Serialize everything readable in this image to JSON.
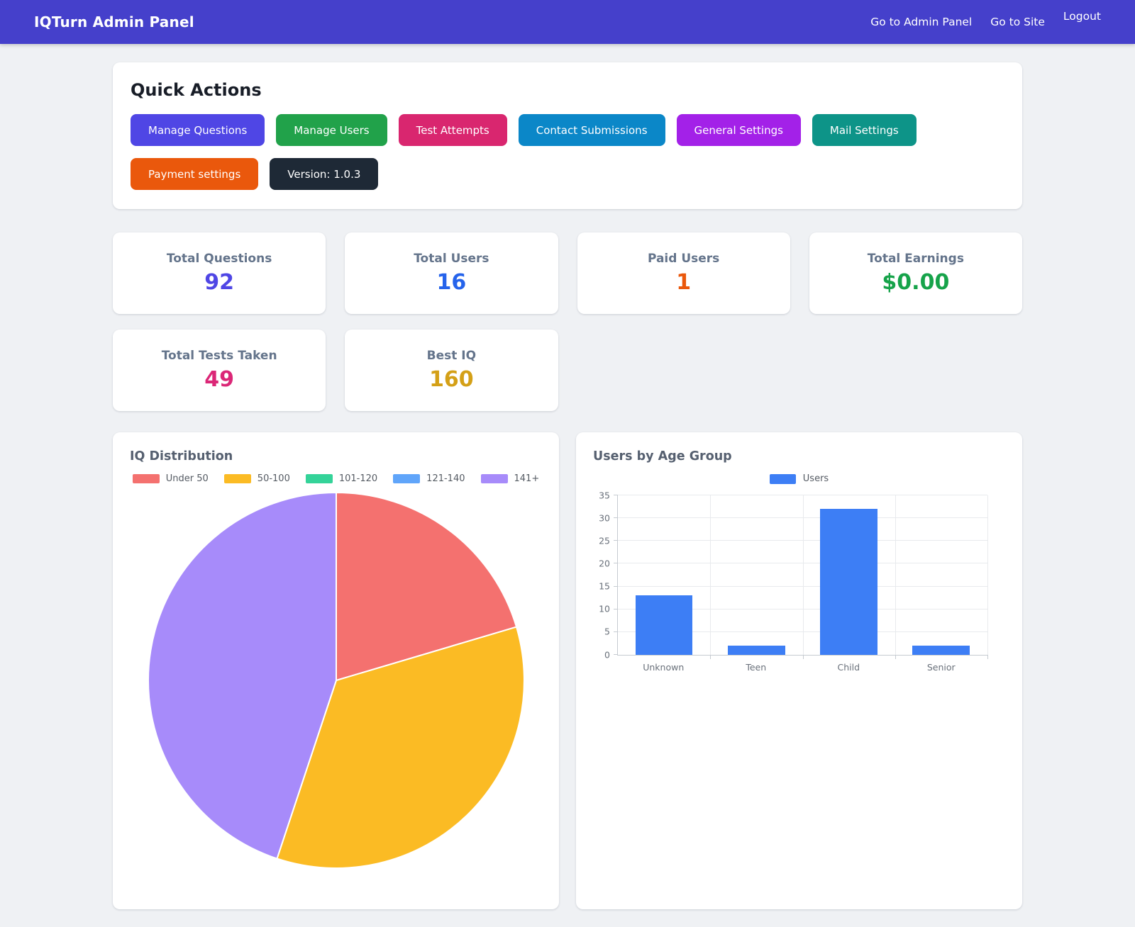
{
  "colors": {
    "navbar": "#4540cb"
  },
  "navbar": {
    "title": "IQTurn Admin Panel",
    "links": [
      "Go to Admin Panel",
      "Go to Site",
      "Logout"
    ]
  },
  "quick_actions": {
    "title": "Quick Actions",
    "buttons": [
      {
        "label": "Manage Questions",
        "bg": "#4f46e5"
      },
      {
        "label": "Manage Users",
        "bg": "#21a24a"
      },
      {
        "label": "Test Attempts",
        "bg": "#d9266f"
      },
      {
        "label": "Contact Submissions",
        "bg": "#0b87c8"
      },
      {
        "label": "General Settings",
        "bg": "#a321e8"
      },
      {
        "label": "Mail Settings",
        "bg": "#0d9488"
      },
      {
        "label": "Payment settings",
        "bg": "#ea580c"
      },
      {
        "label": "Version: 1.0.3",
        "bg": "#1e2936"
      }
    ]
  },
  "stats": [
    {
      "label": "Total Questions",
      "value": "92",
      "color": "#4f46e5"
    },
    {
      "label": "Total Users",
      "value": "16",
      "color": "#2563eb"
    },
    {
      "label": "Paid Users",
      "value": "1",
      "color": "#ea580c"
    },
    {
      "label": "Total Earnings",
      "value": "$0.00",
      "color": "#16a34a"
    },
    {
      "label": "Total Tests Taken",
      "value": "49",
      "color": "#db2777"
    },
    {
      "label": "Best IQ",
      "value": "160",
      "color": "#d4a017"
    }
  ],
  "chart_data": [
    {
      "type": "pie",
      "title": "IQ Distribution",
      "labels": [
        "Under 50",
        "50-100",
        "101-120",
        "121-140",
        "141+"
      ],
      "values": [
        10,
        17,
        0,
        0,
        22
      ],
      "colors": [
        "#f4716f",
        "#fbbb24",
        "#34d399",
        "#60a5fa",
        "#a78bfa"
      ],
      "legend_position": "top"
    },
    {
      "type": "bar",
      "title": "Users by Age Group",
      "categories": [
        "Unknown",
        "Teen",
        "Child",
        "Senior"
      ],
      "series": [
        {
          "name": "Users",
          "values": [
            13,
            2,
            32,
            2
          ]
        }
      ],
      "bar_color": "#3d7ef5",
      "ylim": [
        0,
        35
      ],
      "ytick_step": 5,
      "grid": true,
      "legend_position": "top"
    }
  ]
}
